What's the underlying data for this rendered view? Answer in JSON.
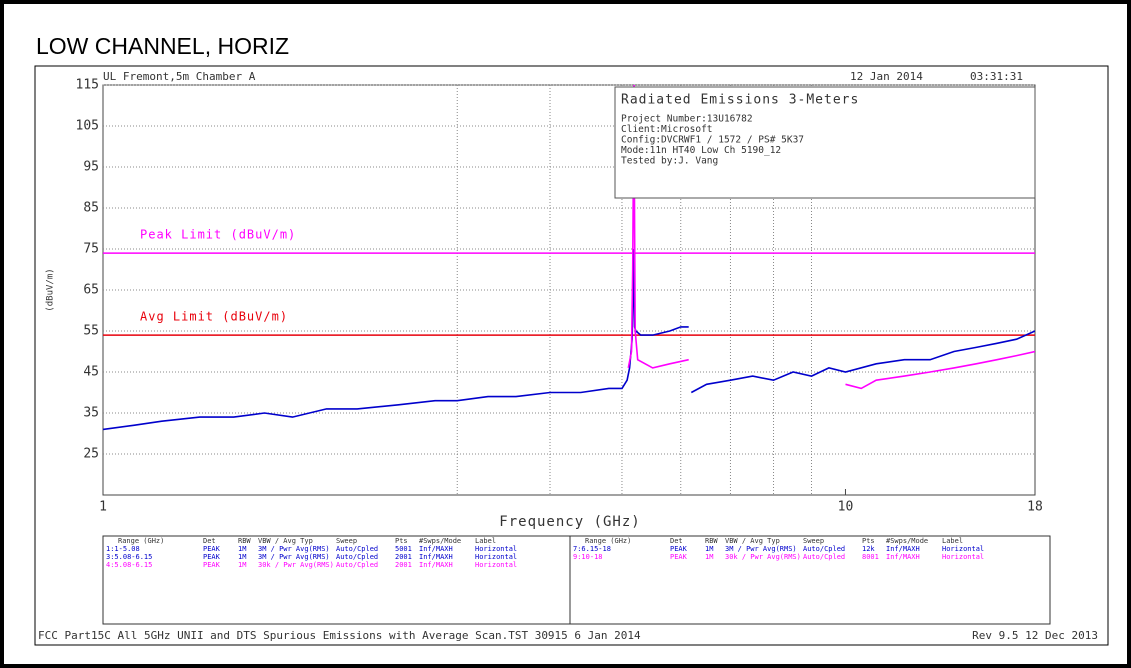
{
  "chart_data": {
    "type": "line",
    "title": "LOW CHANNEL, HORIZ",
    "site": "UL Fremont,5m Chamber A",
    "date": "12 Jan 2014",
    "time": "03:31:31",
    "xlabel": "Frequency (GHz)",
    "ylabel": "(dBuV/m)",
    "log_x": true,
    "xlim": [
      1,
      18
    ],
    "ylim": [
      15,
      115
    ],
    "xticks": [
      1,
      10,
      18
    ],
    "x_grid": [
      3,
      4,
      5,
      6,
      7,
      8,
      9
    ],
    "yticks": [
      25,
      35,
      45,
      55,
      65,
      75,
      85,
      95,
      105,
      115
    ],
    "grid": true,
    "limits": [
      {
        "name": "Peak Limit (dBuV/m)",
        "value": 74,
        "color": "#ff00ff"
      },
      {
        "name": "Avg Limit (dBuV/m)",
        "value": 54,
        "color": "#e8000b"
      }
    ],
    "series": [
      {
        "name": "Peak",
        "color": "#0000cc",
        "x": [
          1,
          1.1,
          1.2,
          1.35,
          1.5,
          1.65,
          1.8,
          2,
          2.2,
          2.5,
          2.8,
          3,
          3.3,
          3.6,
          4,
          4.4,
          4.8,
          5.0,
          5.08,
          5.12,
          5.16,
          5.18,
          5.19,
          5.2,
          5.22,
          5.3,
          5.5,
          5.8,
          6.0,
          6.15,
          6.16,
          6.2,
          6.5,
          7,
          7.5,
          8,
          8.5,
          9,
          9.5,
          10,
          11,
          12,
          13,
          14,
          15,
          16,
          17,
          18
        ],
        "values": [
          31,
          32,
          33,
          34,
          34,
          35,
          34,
          36,
          36,
          37,
          38,
          38,
          39,
          39,
          40,
          40,
          41,
          41,
          43,
          46,
          53,
          67,
          75,
          56,
          55,
          54,
          54,
          55,
          56,
          56,
          null,
          40,
          42,
          43,
          44,
          43,
          45,
          44,
          46,
          45,
          47,
          48,
          48,
          50,
          51,
          52,
          53,
          55
        ]
      },
      {
        "name": "Average",
        "color": "#ff00ff",
        "x": [
          5.1,
          5.15,
          5.17,
          5.18,
          5.19,
          5.2,
          5.21,
          5.25,
          5.5,
          5.8,
          6.15,
          6.2,
          10,
          10.5,
          11,
          12,
          13,
          14,
          15,
          16,
          17,
          18
        ],
        "values": [
          46,
          50,
          70,
          95,
          115,
          80,
          55,
          48,
          46,
          47,
          48,
          null,
          42,
          41,
          43,
          44,
          45,
          46,
          47,
          48,
          49,
          50
        ]
      }
    ],
    "info_box": {
      "title": "Radiated Emissions 3-Meters",
      "lines": [
        "Project Number:13U16782",
        "Client:Microsoft",
        "Config:DVCRWF1 / 1572 / PS# 5K37",
        "Mode:11n HT40 Low Ch 5190_12",
        "Tested by:J. Vang"
      ]
    },
    "legend_table": {
      "columns": [
        "Range (GHz)",
        "Det",
        "RBW",
        "VBW / Avg Typ",
        "Sweep",
        "Pts",
        "#Swps/Mode",
        "Label"
      ],
      "rows": [
        {
          "color": "#0000cc",
          "cells": [
            "1:1-5.08",
            "PEAK",
            "1M",
            "3M / Pwr Avg(RMS)",
            "Auto/Cpled",
            "5001",
            "Inf/MAXH",
            "Horizontal"
          ]
        },
        {
          "color": "#0000cc",
          "cells": [
            "3:5.08-6.15",
            "PEAK",
            "1M",
            "3M / Pwr Avg(RMS)",
            "Auto/Cpled",
            "2001",
            "Inf/MAXH",
            "Horizontal"
          ]
        },
        {
          "color": "#ff00ff",
          "cells": [
            "4:5.08-6.15",
            "PEAK",
            "1M",
            "30k / Pwr Avg(RMS)",
            "Auto/Cpled",
            "2001",
            "Inf/MAXH",
            "Horizontal"
          ]
        },
        {
          "color": "#0000cc",
          "cells": [
            "7:6.15-18",
            "PEAK",
            "1M",
            "3M / Pwr Avg(RMS)",
            "Auto/Cpled",
            "12k",
            "Inf/MAXH",
            "Horizontal"
          ]
        },
        {
          "color": "#ff00ff",
          "cells": [
            "9:10-18",
            "PEAK",
            "1M",
            "30k / Pwr Avg(RMS)",
            "Auto/Cpled",
            "8001",
            "Inf/MAXH",
            "Horizontal"
          ]
        }
      ]
    },
    "footer_left": "FCC Part15C All 5GHz UNII and DTS Spurious Emissions with Average Scan.TST 30915  6 Jan 2014",
    "footer_right": "Rev 9.5 12 Dec 2013"
  }
}
